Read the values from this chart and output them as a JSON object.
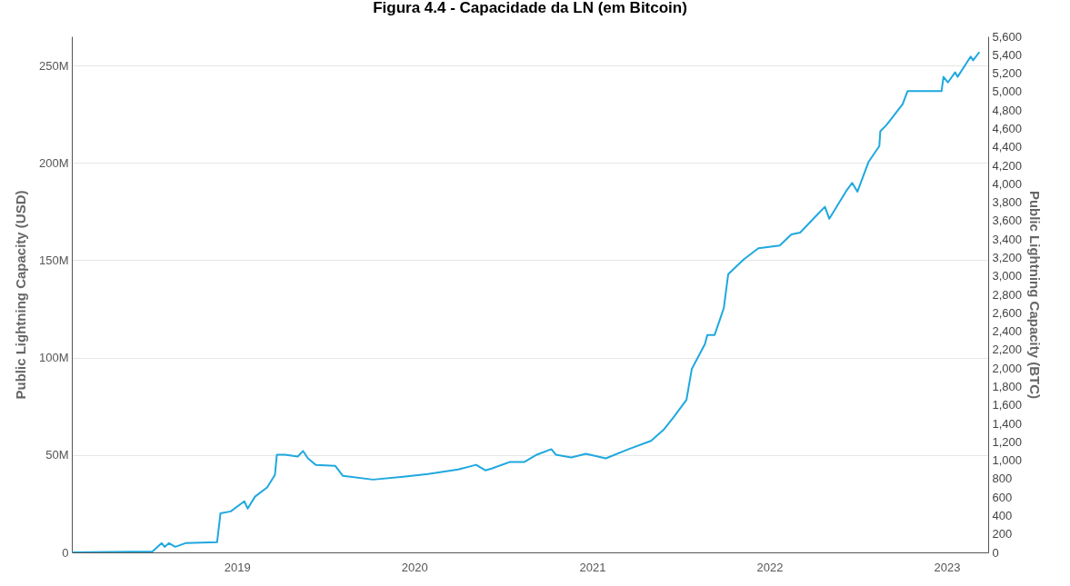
{
  "chart_data": {
    "type": "line",
    "title": "Figura 4.4 - Capacidade da LN (em Bitcoin)",
    "ylabel": "Public Lightning Capacity (USD)",
    "y2label": "Public Lightning Capacity (BTC)",
    "x": [
      "2018-01-26",
      "2018-07-11",
      "2018-07-30",
      "2018-08-05",
      "2018-08-14",
      "2018-08-27",
      "2018-09-17",
      "2018-11-21",
      "2018-11-28",
      "2018-12-19",
      "2019-01-16",
      "2019-01-23",
      "2019-02-07",
      "2019-03-04",
      "2019-03-20",
      "2019-03-24",
      "2019-04-10",
      "2019-05-06",
      "2019-05-17",
      "2019-05-27",
      "2019-06-12",
      "2019-07-22",
      "2019-08-07",
      "2019-10-08",
      "2019-12-09",
      "2020-01-29",
      "2020-03-31",
      "2020-05-07",
      "2020-05-26",
      "2020-06-08",
      "2020-07-15",
      "2020-08-14",
      "2020-09-09",
      "2020-10-09",
      "2020-10-18",
      "2020-11-19",
      "2020-12-19",
      "2021-01-29",
      "2021-03-17",
      "2021-05-02",
      "2021-05-28",
      "2021-06-18",
      "2021-07-14",
      "2021-07-25",
      "2021-08-21",
      "2021-08-26",
      "2021-09-10",
      "2021-09-23",
      "2021-09-29",
      "2021-10-08",
      "2021-11-09",
      "2021-12-09",
      "2022-01-22",
      "2022-02-15",
      "2022-03-05",
      "2022-04-12",
      "2022-04-25",
      "2022-05-04",
      "2022-06-07",
      "2022-06-20",
      "2022-07-01",
      "2022-07-24",
      "2022-08-15",
      "2022-08-17",
      "2022-08-30",
      "2022-10-02",
      "2022-10-12",
      "2022-12-21",
      "2022-12-25",
      "2023-01-03",
      "2023-01-18",
      "2023-01-23",
      "2023-02-19",
      "2023-02-24",
      "2023-03-09"
    ],
    "series": [
      {
        "color": "#1fa8df",
        "axis": "y2",
        "values": [
          0,
          10,
          100,
          60,
          100,
          60,
          100,
          110,
          425,
          445,
          555,
          475,
          605,
          705,
          840,
          1060,
          1060,
          1040,
          1100,
          1020,
          950,
          940,
          830,
          790,
          820,
          850,
          900,
          950,
          890,
          910,
          980,
          980,
          1060,
          1120,
          1060,
          1030,
          1070,
          1020,
          1120,
          1210,
          1330,
          1470,
          1655,
          1990,
          2260,
          2360,
          2360,
          2560,
          2655,
          3020,
          3180,
          3300,
          3330,
          3450,
          3470,
          3680,
          3750,
          3620,
          3915,
          4010,
          3915,
          4240,
          4410,
          4570,
          4640,
          4865,
          5005,
          5005,
          5160,
          5100,
          5210,
          5160,
          5380,
          5340,
          5430
        ]
      }
    ],
    "xlim": [
      "2018-01-26",
      "2023-03-27"
    ],
    "xticks": [
      {
        "value": "2019-01-01",
        "label": "2019"
      },
      {
        "value": "2020-01-01",
        "label": "2020"
      },
      {
        "value": "2021-01-01",
        "label": "2021"
      },
      {
        "value": "2022-01-01",
        "label": "2022"
      },
      {
        "value": "2023-01-01",
        "label": "2023"
      }
    ],
    "ylim": [
      0,
      265000000
    ],
    "yticks": [
      0,
      {
        "value": 50000000,
        "label": "50M"
      },
      {
        "value": 100000000,
        "label": "100M"
      },
      {
        "value": 150000000,
        "label": "150M"
      },
      {
        "value": 200000000,
        "label": "200M"
      },
      {
        "value": 250000000,
        "label": "250M"
      }
    ],
    "y2lim": [
      0,
      5600
    ],
    "y2ticks": [
      0,
      200,
      400,
      600,
      800,
      {
        "value": 1000,
        "label": "1,000"
      },
      {
        "value": 1200,
        "label": "1,200"
      },
      {
        "value": 1400,
        "label": "1,400"
      },
      {
        "value": 1600,
        "label": "1,600"
      },
      {
        "value": 1800,
        "label": "1,800"
      },
      {
        "value": 2000,
        "label": "2,000"
      },
      {
        "value": 2200,
        "label": "2,200"
      },
      {
        "value": 2400,
        "label": "2,400"
      },
      {
        "value": 2600,
        "label": "2,600"
      },
      {
        "value": 2800,
        "label": "2,800"
      },
      {
        "value": 3000,
        "label": "3,000"
      },
      {
        "value": 3200,
        "label": "3,200"
      },
      {
        "value": 3400,
        "label": "3,400"
      },
      {
        "value": 3600,
        "label": "3,600"
      },
      {
        "value": 3800,
        "label": "3,800"
      },
      {
        "value": 4000,
        "label": "4,000"
      },
      {
        "value": 4200,
        "label": "4,200"
      },
      {
        "value": 4400,
        "label": "4,400"
      },
      {
        "value": 4600,
        "label": "4,600"
      },
      {
        "value": 4800,
        "label": "4,800"
      },
      {
        "value": 5000,
        "label": "5,000"
      },
      {
        "value": 5200,
        "label": "5,200"
      },
      {
        "value": 5400,
        "label": "5,400"
      },
      {
        "value": 5600,
        "label": "5,600"
      }
    ],
    "grid": "y"
  }
}
